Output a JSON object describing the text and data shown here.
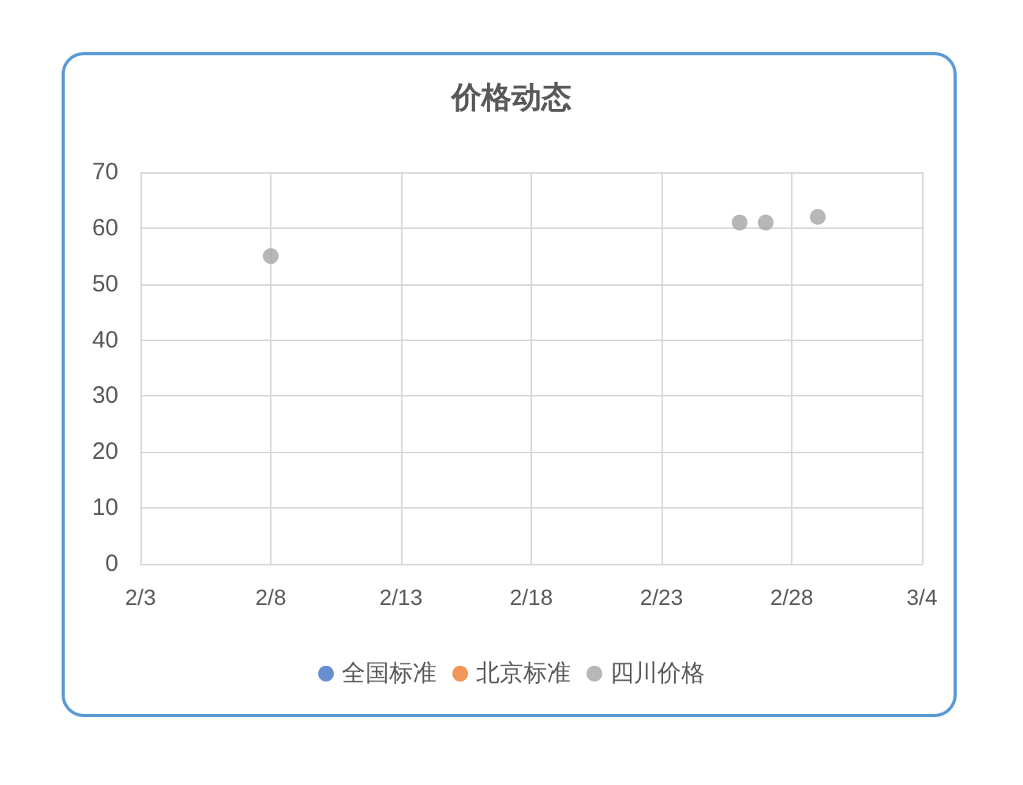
{
  "chart_data": {
    "type": "scatter",
    "title": "价格动态",
    "x": [
      "--02-08",
      "--02-26",
      "--02-27",
      "--02-29"
    ],
    "series": [
      {
        "name": "全国标准",
        "color": "#4472c4",
        "values": [
          null,
          null,
          null,
          null
        ]
      },
      {
        "name": "北京标准",
        "color": "#ed7d31",
        "values": [
          null,
          null,
          null,
          null
        ]
      },
      {
        "name": "四川价格",
        "color": "#a5a5a5",
        "values": [
          55,
          61,
          61,
          62
        ]
      }
    ],
    "xlim": [
      "--02-03",
      "--03-04"
    ],
    "xticks": [
      {
        "value": "--02-03",
        "label": "2/3"
      },
      {
        "value": "--02-08",
        "label": "2/8"
      },
      {
        "value": "--02-13",
        "label": "2/13"
      },
      {
        "value": "--02-18",
        "label": "2/18"
      },
      {
        "value": "--02-23",
        "label": "2/23"
      },
      {
        "value": "--02-28",
        "label": "2/28"
      },
      {
        "value": "--03-04",
        "label": "3/4"
      }
    ],
    "ylim": [
      0,
      70
    ],
    "yticks": [
      0,
      10,
      20,
      30,
      40,
      50,
      60,
      70
    ],
    "grid": true,
    "legend": "bottom",
    "marker": "circle"
  }
}
